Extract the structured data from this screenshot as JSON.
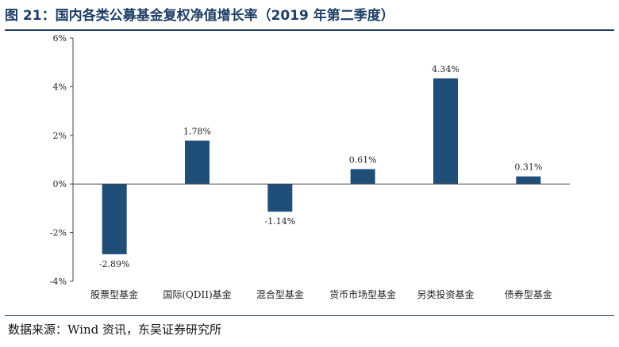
{
  "figure": {
    "title": "图 21：国内各类公募基金复权净值增长率（2019 年第二季度）",
    "source": "数据来源：Wind 资讯，东吴证券研究所"
  },
  "colors": {
    "bar": "#1f4e79",
    "title": "#1f3f66",
    "axis": "#444444"
  },
  "chart_data": {
    "type": "bar",
    "categories": [
      "股票型基金",
      "国际(QDII)基金",
      "混合型基金",
      "货币市场型基金",
      "另类投资基金",
      "债券型基金"
    ],
    "values": [
      -2.89,
      1.78,
      -1.14,
      0.61,
      4.34,
      0.31
    ],
    "value_labels": [
      "-2.89%",
      "1.78%",
      "-1.14%",
      "0.61%",
      "4.34%",
      "0.31%"
    ],
    "ylim": [
      -4,
      6
    ],
    "yticks": [
      -4,
      -2,
      0,
      2,
      4,
      6
    ],
    "ytick_labels": [
      "-4%",
      "-2%",
      "0%",
      "2%",
      "4%",
      "6%"
    ],
    "grid": false,
    "legend": "none"
  }
}
